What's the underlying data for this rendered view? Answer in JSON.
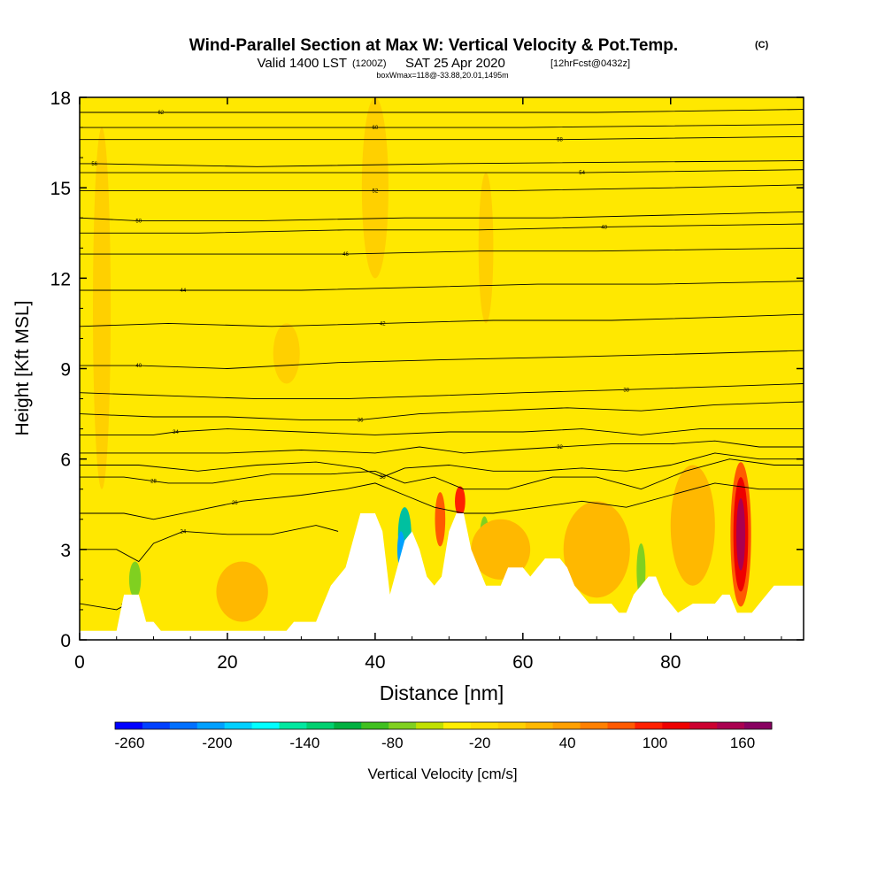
{
  "chart_data": {
    "type": "contour-section",
    "title": "Wind-Parallel Section at Max W: Vertical Velocity & Pot.Temp.",
    "title_tag": "(C)",
    "subtitle_valid": "Valid 1400 LST",
    "subtitle_zulu": "(1200Z)",
    "subtitle_date": "SAT 25 Apr 2020",
    "subtitle_fcst": "[12hrFcst@0432z]",
    "subtitle_box": "boxWmax=118@-33.88,20.01,1495m",
    "xlabel": "Distance [nm]",
    "ylabel": "Height [Kft MSL]",
    "xlim": [
      0,
      98
    ],
    "ylim": [
      0,
      18
    ],
    "xticks": [
      "0",
      "20",
      "40",
      "60",
      "80"
    ],
    "xtick_values": [
      0,
      20,
      40,
      60,
      80
    ],
    "yticks": [
      "0",
      "3",
      "6",
      "9",
      "12",
      "15",
      "18"
    ],
    "ytick_values": [
      0,
      3,
      6,
      9,
      12,
      15,
      18
    ],
    "colorbar": {
      "label": "Vertical Velocity [cm/s]",
      "min": -270,
      "max": 180,
      "tick_labels": [
        "-260",
        "-200",
        "-140",
        "-80",
        "-20",
        "40",
        "100",
        "160"
      ],
      "tick_values": [
        -260,
        -200,
        -140,
        -80,
        -20,
        40,
        100,
        160
      ],
      "colors": [
        "#0000ff",
        "#0040ff",
        "#0070ff",
        "#00a0ff",
        "#00d0ff",
        "#00ffff",
        "#00e8a0",
        "#00d070",
        "#00b040",
        "#40c020",
        "#80d020",
        "#c0e000",
        "#ffee00",
        "#ffe000",
        "#ffd000",
        "#ffb800",
        "#ffa000",
        "#ff8000",
        "#ff5a00",
        "#ff2000",
        "#ee0000",
        "#cc0030",
        "#aa0050",
        "#880060"
      ]
    },
    "terrain_kft": [
      [
        0,
        0.3
      ],
      [
        5,
        0.3
      ],
      [
        6,
        1.5
      ],
      [
        8,
        1.5
      ],
      [
        9,
        0.6
      ],
      [
        10,
        0.6
      ],
      [
        11,
        0.3
      ],
      [
        28,
        0.3
      ],
      [
        29,
        0.6
      ],
      [
        32,
        0.6
      ],
      [
        33,
        1.2
      ],
      [
        34,
        1.8
      ],
      [
        36,
        2.4
      ],
      [
        38,
        4.2
      ],
      [
        40,
        4.2
      ],
      [
        41,
        3.6
      ],
      [
        42,
        1.5
      ],
      [
        43,
        2.4
      ],
      [
        44,
        3.3
      ],
      [
        45,
        3.6
      ],
      [
        46,
        3.0
      ],
      [
        47,
        2.1
      ],
      [
        48,
        1.8
      ],
      [
        49,
        2.1
      ],
      [
        50,
        3.6
      ],
      [
        51,
        4.2
      ],
      [
        52,
        4.2
      ],
      [
        53,
        3.0
      ],
      [
        54,
        2.4
      ],
      [
        55,
        1.8
      ],
      [
        57,
        1.8
      ],
      [
        58,
        2.4
      ],
      [
        60,
        2.4
      ],
      [
        61,
        2.1
      ],
      [
        62,
        2.4
      ],
      [
        63,
        2.7
      ],
      [
        64,
        2.7
      ],
      [
        65,
        2.7
      ],
      [
        66,
        2.4
      ],
      [
        67,
        1.8
      ],
      [
        69,
        1.2
      ],
      [
        72,
        1.2
      ],
      [
        73,
        0.9
      ],
      [
        74,
        0.9
      ],
      [
        75,
        1.5
      ],
      [
        77,
        2.1
      ],
      [
        78,
        2.1
      ],
      [
        79,
        1.5
      ],
      [
        80,
        1.2
      ],
      [
        81,
        0.9
      ],
      [
        83,
        1.2
      ],
      [
        86,
        1.2
      ],
      [
        87,
        1.5
      ],
      [
        88,
        1.5
      ],
      [
        89,
        0.9
      ],
      [
        91,
        0.9
      ],
      [
        92,
        1.2
      ],
      [
        93,
        1.5
      ],
      [
        94,
        1.8
      ],
      [
        98,
        1.8
      ]
    ],
    "shading_kft": [
      {
        "x": 7.5,
        "y": 2.0,
        "rx": 0.8,
        "ry": 0.6,
        "color": "#80d020"
      },
      {
        "x": 44.0,
        "y": 3.5,
        "rx": 0.9,
        "ry": 0.9,
        "color": "#00c0a0"
      },
      {
        "x": 43.5,
        "y": 3.0,
        "rx": 0.5,
        "ry": 0.6,
        "color": "#00a0ff"
      },
      {
        "x": 48.8,
        "y": 4.0,
        "rx": 0.7,
        "ry": 0.9,
        "color": "#ff5a00"
      },
      {
        "x": 51.5,
        "y": 4.6,
        "rx": 0.7,
        "ry": 0.5,
        "color": "#ff2000"
      },
      {
        "x": 54.8,
        "y": 3.2,
        "rx": 0.7,
        "ry": 0.9,
        "color": "#80d020"
      },
      {
        "x": 76.0,
        "y": 2.3,
        "rx": 0.6,
        "ry": 0.9,
        "color": "#80d020"
      },
      {
        "x": 89.5,
        "y": 3.5,
        "rx": 1.4,
        "ry": 2.4,
        "color": "#ff5a00"
      },
      {
        "x": 89.5,
        "y": 3.5,
        "rx": 1.0,
        "ry": 1.9,
        "color": "#ee0000"
      },
      {
        "x": 89.5,
        "y": 3.5,
        "rx": 0.6,
        "ry": 1.2,
        "color": "#aa0050"
      },
      {
        "x": 22.0,
        "y": 1.6,
        "rx": 3.5,
        "ry": 1.0,
        "color": "#ffb800"
      },
      {
        "x": 57.0,
        "y": 3.0,
        "rx": 4.0,
        "ry": 1.0,
        "color": "#ffb800"
      },
      {
        "x": 70.0,
        "y": 3.0,
        "rx": 4.5,
        "ry": 1.6,
        "color": "#ffb800"
      },
      {
        "x": 83.0,
        "y": 3.8,
        "rx": 3.0,
        "ry": 2.0,
        "color": "#ffb800"
      },
      {
        "x": 3.0,
        "y": 11.0,
        "rx": 1.2,
        "ry": 6.0,
        "color": "#ffd000"
      },
      {
        "x": 40.0,
        "y": 15.0,
        "rx": 1.8,
        "ry": 3.0,
        "color": "#ffd000"
      },
      {
        "x": 55.0,
        "y": 13.0,
        "rx": 1.0,
        "ry": 2.5,
        "color": "#ffd000"
      },
      {
        "x": 28.0,
        "y": 9.5,
        "rx": 1.8,
        "ry": 1.0,
        "color": "#ffd000"
      }
    ],
    "isentropes_kft": [
      {
        "label": "22",
        "label_x": 6,
        "pts": [
          [
            0,
            1.2
          ],
          [
            5,
            1.0
          ],
          [
            6.5,
            1.2
          ]
        ]
      },
      {
        "label": "24",
        "label_x": 14,
        "pts": [
          [
            0,
            3.0
          ],
          [
            5,
            3.0
          ],
          [
            8,
            2.6
          ],
          [
            10,
            3.2
          ],
          [
            14,
            3.6
          ],
          [
            20,
            3.5
          ],
          [
            26,
            3.5
          ],
          [
            32,
            3.8
          ],
          [
            35,
            3.6
          ]
        ]
      },
      {
        "label": "26",
        "label_x": 21,
        "pts": [
          [
            0,
            4.2
          ],
          [
            6,
            4.2
          ],
          [
            10,
            4.0
          ],
          [
            16,
            4.3
          ],
          [
            22,
            4.6
          ],
          [
            30,
            4.8
          ],
          [
            36,
            5.0
          ],
          [
            40,
            5.2
          ],
          [
            44,
            4.8
          ],
          [
            48,
            4.4
          ],
          [
            52,
            4.2
          ],
          [
            56,
            4.2
          ],
          [
            62,
            4.4
          ],
          [
            68,
            4.6
          ],
          [
            74,
            4.4
          ],
          [
            80,
            4.8
          ],
          [
            86,
            5.2
          ],
          [
            92,
            5.0
          ],
          [
            98,
            5.0
          ]
        ]
      },
      {
        "label": "28",
        "label_x": 10,
        "pts": [
          [
            0,
            5.4
          ],
          [
            6,
            5.4
          ],
          [
            12,
            5.2
          ],
          [
            18,
            5.2
          ],
          [
            26,
            5.5
          ],
          [
            34,
            5.5
          ],
          [
            40,
            5.6
          ],
          [
            44,
            5.2
          ],
          [
            48,
            5.4
          ],
          [
            52,
            5.0
          ],
          [
            58,
            5.0
          ],
          [
            64,
            5.4
          ],
          [
            70,
            5.4
          ],
          [
            76,
            5.0
          ],
          [
            82,
            5.6
          ],
          [
            88,
            6.0
          ],
          [
            94,
            5.8
          ],
          [
            98,
            5.8
          ]
        ]
      },
      {
        "label": "30",
        "label_x": 41,
        "pts": [
          [
            0,
            5.8
          ],
          [
            8,
            5.8
          ],
          [
            16,
            5.6
          ],
          [
            24,
            5.8
          ],
          [
            32,
            5.9
          ],
          [
            38,
            5.7
          ],
          [
            41,
            5.4
          ],
          [
            44,
            5.7
          ],
          [
            50,
            5.8
          ],
          [
            56,
            5.6
          ],
          [
            62,
            5.6
          ],
          [
            68,
            5.7
          ],
          [
            74,
            5.6
          ],
          [
            80,
            5.8
          ],
          [
            86,
            6.2
          ],
          [
            92,
            6.0
          ],
          [
            98,
            6.0
          ]
        ]
      },
      {
        "label": "32",
        "label_x": 65,
        "pts": [
          [
            0,
            6.2
          ],
          [
            10,
            6.2
          ],
          [
            20,
            6.2
          ],
          [
            30,
            6.3
          ],
          [
            40,
            6.2
          ],
          [
            46,
            6.4
          ],
          [
            52,
            6.2
          ],
          [
            58,
            6.3
          ],
          [
            65,
            6.4
          ],
          [
            72,
            6.5
          ],
          [
            80,
            6.5
          ],
          [
            86,
            6.6
          ],
          [
            92,
            6.4
          ],
          [
            98,
            6.4
          ]
        ]
      },
      {
        "label": "34",
        "label_x": 13,
        "pts": [
          [
            0,
            6.8
          ],
          [
            10,
            6.8
          ],
          [
            13,
            6.9
          ],
          [
            20,
            7.0
          ],
          [
            30,
            6.9
          ],
          [
            40,
            6.8
          ],
          [
            50,
            6.9
          ],
          [
            60,
            6.9
          ],
          [
            68,
            7.0
          ],
          [
            76,
            6.8
          ],
          [
            84,
            7.0
          ],
          [
            92,
            7.0
          ],
          [
            98,
            7.0
          ]
        ]
      },
      {
        "label": "36",
        "label_x": 38,
        "pts": [
          [
            0,
            7.5
          ],
          [
            10,
            7.4
          ],
          [
            20,
            7.4
          ],
          [
            30,
            7.3
          ],
          [
            38,
            7.3
          ],
          [
            46,
            7.5
          ],
          [
            56,
            7.6
          ],
          [
            66,
            7.7
          ],
          [
            76,
            7.6
          ],
          [
            86,
            7.8
          ],
          [
            98,
            7.9
          ]
        ]
      },
      {
        "label": "38",
        "label_x": 74,
        "pts": [
          [
            0,
            8.2
          ],
          [
            12,
            8.1
          ],
          [
            24,
            8.0
          ],
          [
            36,
            8.0
          ],
          [
            48,
            8.1
          ],
          [
            60,
            8.2
          ],
          [
            74,
            8.3
          ],
          [
            86,
            8.4
          ],
          [
            98,
            8.5
          ]
        ]
      },
      {
        "label": "40",
        "label_x": 8,
        "pts": [
          [
            0,
            9.1
          ],
          [
            8,
            9.1
          ],
          [
            20,
            9.0
          ],
          [
            35,
            9.2
          ],
          [
            50,
            9.3
          ],
          [
            68,
            9.4
          ],
          [
            84,
            9.5
          ],
          [
            98,
            9.6
          ]
        ]
      },
      {
        "label": "42",
        "label_x": 41,
        "pts": [
          [
            0,
            10.4
          ],
          [
            12,
            10.5
          ],
          [
            26,
            10.4
          ],
          [
            41,
            10.5
          ],
          [
            56,
            10.6
          ],
          [
            72,
            10.6
          ],
          [
            86,
            10.7
          ],
          [
            98,
            10.8
          ]
        ]
      },
      {
        "label": "44",
        "label_x": 14,
        "pts": [
          [
            0,
            11.6
          ],
          [
            14,
            11.6
          ],
          [
            30,
            11.6
          ],
          [
            46,
            11.7
          ],
          [
            62,
            11.8
          ],
          [
            78,
            11.8
          ],
          [
            98,
            11.9
          ]
        ]
      },
      {
        "label": "46",
        "label_x": 36,
        "pts": [
          [
            0,
            12.8
          ],
          [
            16,
            12.8
          ],
          [
            36,
            12.8
          ],
          [
            54,
            12.9
          ],
          [
            70,
            12.9
          ],
          [
            98,
            13.0
          ]
        ]
      },
      {
        "label": "48",
        "label_x": 71,
        "pts": [
          [
            0,
            13.5
          ],
          [
            16,
            13.5
          ],
          [
            36,
            13.6
          ],
          [
            54,
            13.6
          ],
          [
            71,
            13.7
          ],
          [
            98,
            13.8
          ]
        ]
      },
      {
        "label": "50",
        "label_x": 8,
        "pts": [
          [
            0,
            14.0
          ],
          [
            8,
            13.9
          ],
          [
            24,
            13.9
          ],
          [
            44,
            14.0
          ],
          [
            64,
            14.0
          ],
          [
            98,
            14.2
          ]
        ]
      },
      {
        "label": "52",
        "label_x": 40,
        "pts": [
          [
            0,
            14.9
          ],
          [
            18,
            14.9
          ],
          [
            40,
            14.9
          ],
          [
            58,
            14.9
          ],
          [
            80,
            15.0
          ],
          [
            98,
            15.1
          ]
        ]
      },
      {
        "label": "54",
        "label_x": 68,
        "pts": [
          [
            0,
            15.5
          ],
          [
            20,
            15.5
          ],
          [
            44,
            15.5
          ],
          [
            68,
            15.5
          ],
          [
            98,
            15.6
          ]
        ]
      },
      {
        "label": "56",
        "label_x": 2,
        "pts": [
          [
            0,
            15.8
          ],
          [
            2,
            15.8
          ],
          [
            24,
            15.7
          ],
          [
            50,
            15.8
          ],
          [
            98,
            15.9
          ]
        ]
      },
      {
        "label": "58",
        "label_x": 65,
        "pts": [
          [
            0,
            16.6
          ],
          [
            20,
            16.6
          ],
          [
            44,
            16.6
          ],
          [
            65,
            16.6
          ],
          [
            98,
            16.7
          ]
        ]
      },
      {
        "label": "60",
        "label_x": 40,
        "pts": [
          [
            0,
            17.0
          ],
          [
            20,
            17.0
          ],
          [
            40,
            17.0
          ],
          [
            60,
            17.0
          ],
          [
            98,
            17.1
          ]
        ]
      },
      {
        "label": "62",
        "label_x": 11,
        "pts": [
          [
            0,
            17.5
          ],
          [
            11,
            17.5
          ],
          [
            36,
            17.5
          ],
          [
            70,
            17.5
          ],
          [
            98,
            17.6
          ]
        ]
      }
    ]
  }
}
